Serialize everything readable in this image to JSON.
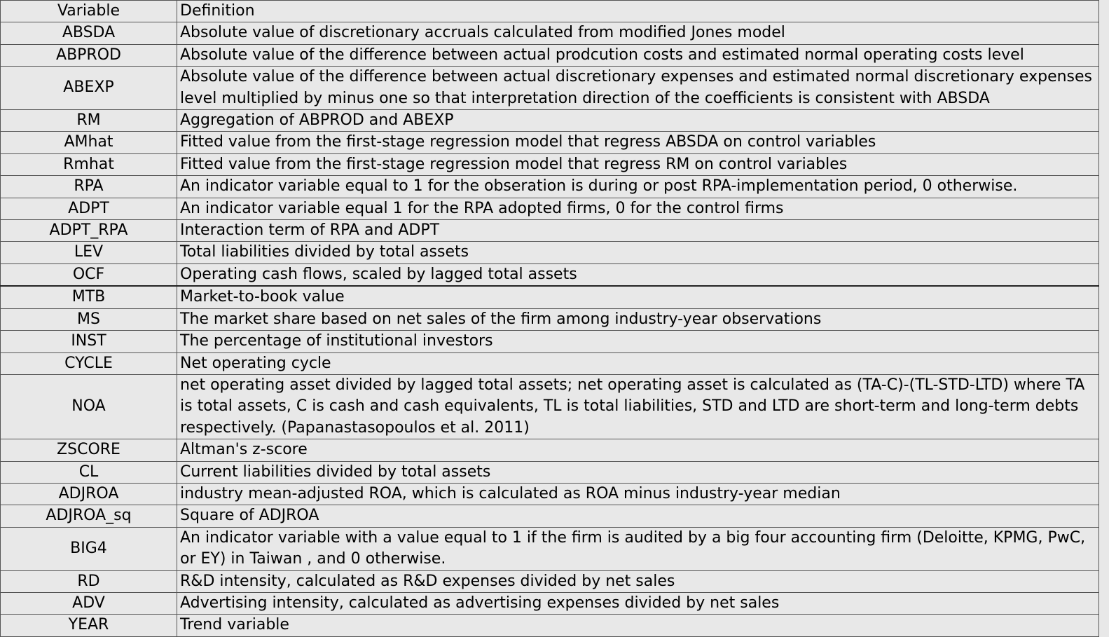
{
  "header": {
    "variable": "Variable",
    "definition": "Definition"
  },
  "rows": [
    {
      "variable": "ABSDA",
      "definition": "Absolute value of discretionary accruals calculated from modified Jones model"
    },
    {
      "variable": "ABPROD",
      "definition": "Absolute value of the difference between actual prodcution costs and estimated normal operating costs level"
    },
    {
      "variable": "ABEXP",
      "definition": "Absolute value of the difference between actual discretionary expenses and estimated normal discretionary expenses level multiplied by minus one so that interpretation direction  of the coefficients is consistent with ABSDA"
    },
    {
      "variable": "RM",
      "definition": "Aggregation of ABPROD and ABEXP"
    },
    {
      "variable": "AMhat",
      "definition": "Fitted value from the first-stage regression model that regress ABSDA on control variables"
    },
    {
      "variable": "Rmhat",
      "definition": "Fitted value from the first-stage regression model that regress RM on control variables"
    },
    {
      "variable": "RPA",
      "definition": "An indicator variable equal to 1 for the obseration is during or post RPA-implementation period, 0 otherwise."
    },
    {
      "variable": "ADPT",
      "definition": "An indicator variable equal 1 for the RPA adopted firms, 0 for the control firms"
    },
    {
      "variable": "ADPT_RPA",
      "definition": "Interaction term of RPA and ADPT"
    },
    {
      "variable": "LEV",
      "definition": "Total liabilities divided by total assets"
    },
    {
      "variable": "OCF",
      "definition": "Operating cash flows, scaled by lagged total assets"
    },
    {
      "variable": "MTB",
      "definition": "Market-to-book value"
    },
    {
      "variable": "MS",
      "definition": "The market share based on net sales of the firm among industry-year observations"
    },
    {
      "variable": "INST",
      "definition": "The percentage of institutional investors"
    },
    {
      "variable": "CYCLE",
      "definition": "Net operating cycle"
    },
    {
      "variable": "NOA",
      "definition": "net operating asset divided by lagged total assets; net operating asset is calculated as (TA-C)-(TL-STD-LTD) where TA is total assets, C is cash and cash equivalents, TL is total liabilities, STD and LTD are short-term and long-term debts respectively. (Papanastasopoulos et al. 2011)"
    },
    {
      "variable": "ZSCORE",
      "definition": "Altman's z-score"
    },
    {
      "variable": "CL",
      "definition": "Current liabilities divided by total assets"
    },
    {
      "variable": "ADJROA",
      "definition": "industry mean-adjusted ROA, which is calculated as ROA minus industry-year median"
    },
    {
      "variable": "ADJROA_sq",
      "definition": "Square of ADJROA"
    },
    {
      "variable": "BIG4",
      "definition": "An indicator variable with a value equal to 1 if the firm is audited by a big four accounting firm (Deloitte, KPMG, PwC, or EY)  in Taiwan , and 0 otherwise."
    },
    {
      "variable": "RD",
      "definition": "R&D intensity, calculated as R&D expenses divided by net sales"
    },
    {
      "variable": "ADV",
      "definition": "Advertising intensity, calculated as advertising expenses divided by net sales"
    },
    {
      "variable": "YEAR",
      "definition": "Trend variable"
    }
  ]
}
